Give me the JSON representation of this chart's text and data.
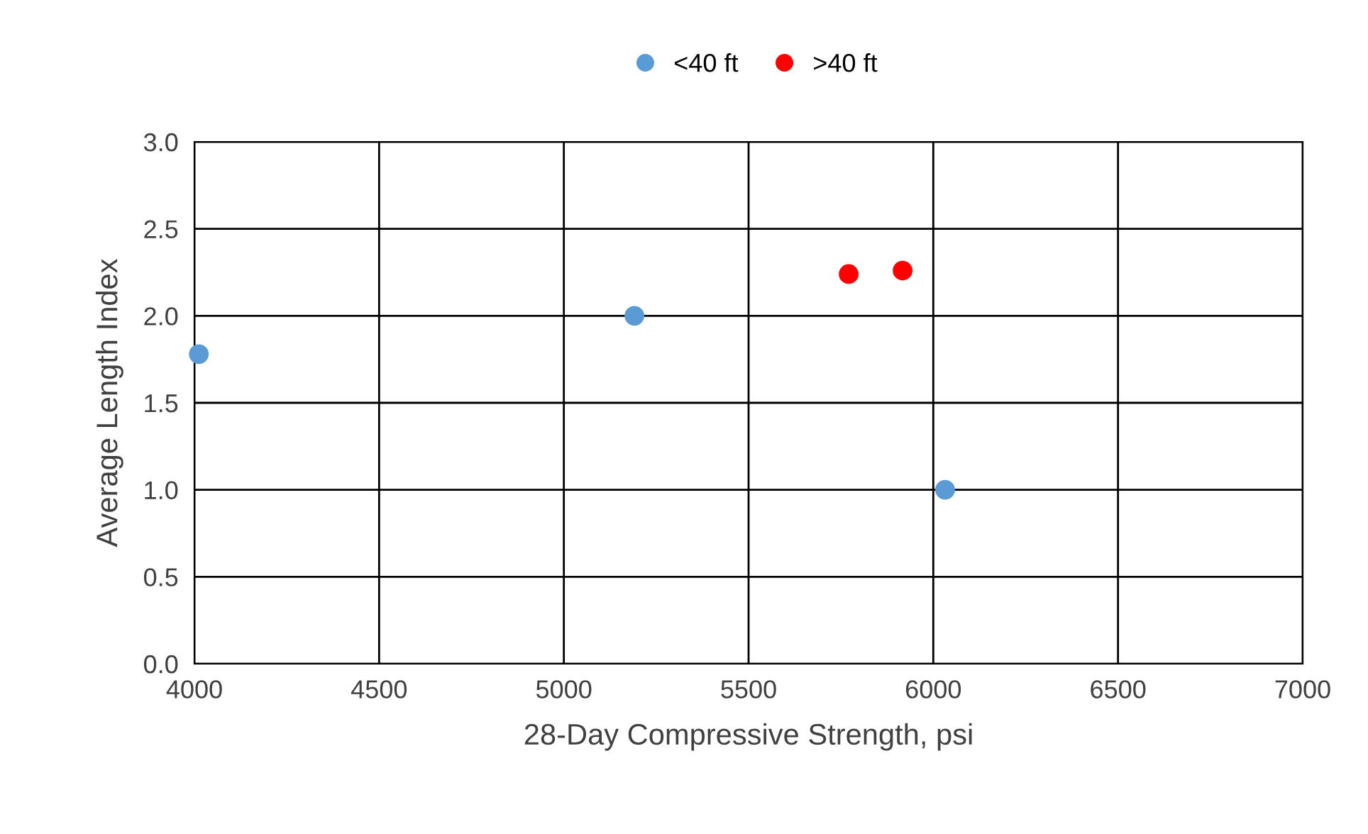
{
  "chart_data": {
    "type": "scatter",
    "xlabel": "28-Day Compressive Strength, psi",
    "ylabel": "Average Length Index",
    "series": [
      {
        "name": "<40 ft",
        "color": "#5b9bd5",
        "x": [
          4012,
          5191,
          6032
        ],
        "values": [
          1.78,
          2.0,
          1.0
        ]
      },
      {
        "name": ">40 ft",
        "color": "#ff0000",
        "x": [
          5771,
          5917
        ],
        "values": [
          2.24,
          2.26
        ]
      }
    ],
    "xlim": [
      4000,
      7000
    ],
    "xticks": [
      4000,
      4500,
      5000,
      5500,
      6000,
      6500,
      7000
    ],
    "ylim": [
      0,
      3
    ],
    "yticks": [
      {
        "value": 0,
        "label": "0.0"
      },
      {
        "value": 0.5,
        "label": "0.5"
      },
      {
        "value": 1,
        "label": "1.0"
      },
      {
        "value": 1.5,
        "label": "1.5"
      },
      {
        "value": 2,
        "label": "2.0"
      },
      {
        "value": 2.5,
        "label": "2.5"
      },
      {
        "value": 3,
        "label": "3.0"
      }
    ],
    "grid": true,
    "legend": "top",
    "marker": "circle"
  }
}
